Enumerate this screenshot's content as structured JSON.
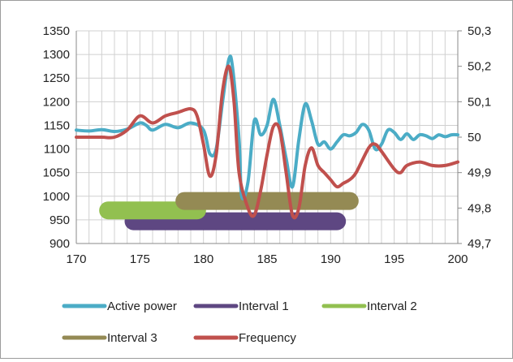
{
  "chart_data": {
    "type": "line",
    "title": "",
    "xlabel": "",
    "ylabel": "",
    "y2label": "",
    "xlim": [
      170,
      200
    ],
    "ylim": [
      900,
      1350
    ],
    "y2lim": [
      49.7,
      50.3
    ],
    "xticks": [
      170,
      175,
      180,
      185,
      190,
      195,
      200
    ],
    "xtick_labels": [
      "170",
      "175",
      "180",
      "185",
      "190",
      "195",
      "200"
    ],
    "yticks": [
      900,
      950,
      1000,
      1050,
      1100,
      1150,
      1200,
      1250,
      1300,
      1350
    ],
    "ytick_labels": [
      "900",
      "950",
      "1000",
      "1050",
      "1100",
      "1150",
      "1200",
      "1250",
      "1300",
      "1350"
    ],
    "y2ticks": [
      49.7,
      49.8,
      49.9,
      50.0,
      50.1,
      50.2,
      50.3
    ],
    "y2tick_labels": [
      "49,7",
      "49,8",
      "49,9",
      "50",
      "50,1",
      "50,2",
      "50,3"
    ],
    "grid": true,
    "legend_position": "bottom",
    "series": [
      {
        "name": "Active power",
        "axis": "left",
        "color": "#4bacc6",
        "x": [
          170,
          171,
          172,
          173,
          174,
          175,
          175.5,
          176,
          177,
          178,
          179,
          180,
          180.5,
          181,
          181.5,
          182,
          182.3,
          182.8,
          183,
          183.5,
          184,
          184.5,
          185,
          185.5,
          186,
          186.5,
          187,
          187.5,
          188,
          188.5,
          189,
          189.5,
          190,
          190.5,
          191,
          191.5,
          192,
          192.5,
          193,
          193.5,
          194,
          194.5,
          195,
          195.5,
          196,
          196.5,
          197,
          197.5,
          198,
          198.5,
          199,
          199.5,
          200
        ],
        "y": [
          1140,
          1138,
          1141,
          1137,
          1142,
          1155,
          1150,
          1140,
          1152,
          1145,
          1155,
          1140,
          1090,
          1100,
          1200,
          1290,
          1270,
          1120,
          1000,
          1030,
          1160,
          1130,
          1150,
          1205,
          1150,
          1080,
          1020,
          1120,
          1195,
          1160,
          1110,
          1115,
          1100,
          1115,
          1130,
          1128,
          1135,
          1152,
          1140,
          1100,
          1110,
          1140,
          1135,
          1120,
          1132,
          1120,
          1130,
          1128,
          1122,
          1130,
          1126,
          1130,
          1130
        ]
      },
      {
        "name": "Frequency",
        "axis": "right",
        "color": "#c0504d",
        "x": [
          170,
          171,
          172,
          173,
          174,
          175,
          176,
          177,
          178,
          179,
          179.5,
          180,
          180.5,
          181,
          181.5,
          182,
          182.4,
          182.8,
          183.5,
          184,
          184.5,
          185,
          185.5,
          186,
          186.5,
          187,
          187.5,
          188,
          188.5,
          189,
          189.5,
          190,
          190.5,
          191,
          191.5,
          192,
          193,
          193.5,
          194,
          195,
          195.5,
          196,
          197,
          198,
          199,
          200
        ],
        "y": [
          50.0,
          50.0,
          50.0,
          50.0,
          50.02,
          50.06,
          50.04,
          50.06,
          50.07,
          50.08,
          50.06,
          49.98,
          49.89,
          49.95,
          50.13,
          50.2,
          50.1,
          49.9,
          49.8,
          49.78,
          49.85,
          49.95,
          50.03,
          50.02,
          49.9,
          49.78,
          49.8,
          49.92,
          49.97,
          49.92,
          49.9,
          49.88,
          49.86,
          49.87,
          49.88,
          49.9,
          49.97,
          49.98,
          49.96,
          49.91,
          49.9,
          49.92,
          49.93,
          49.92,
          49.92,
          49.93
        ]
      },
      {
        "name": "Interval 1",
        "kind": "interval",
        "axis": "left",
        "color": "#5e4782",
        "x_start": 174.5,
        "x_end": 190.5,
        "y": 947
      },
      {
        "name": "Interval 2",
        "kind": "interval",
        "axis": "left",
        "color": "#92c050",
        "x_start": 172.5,
        "x_end": 179.5,
        "y": 970
      },
      {
        "name": "Interval 3",
        "kind": "interval",
        "axis": "left",
        "color": "#948a54",
        "x_start": 178.5,
        "x_end": 191.5,
        "y": 990
      }
    ],
    "legend": [
      {
        "label": "Active power",
        "color": "#4bacc6",
        "row": 0,
        "col": 0
      },
      {
        "label": "Interval 1",
        "color": "#5e4782",
        "row": 0,
        "col": 1
      },
      {
        "label": "Interval 2",
        "color": "#92c050",
        "row": 0,
        "col": 2
      },
      {
        "label": "Interval 3",
        "color": "#948a54",
        "row": 1,
        "col": 0
      },
      {
        "label": "Frequency",
        "color": "#c0504d",
        "row": 1,
        "col": 1
      }
    ]
  }
}
